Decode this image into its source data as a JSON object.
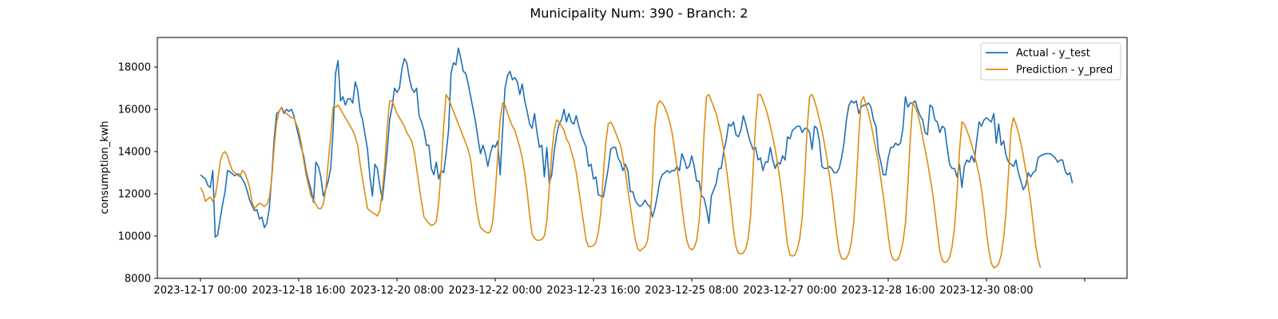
{
  "chart_data": {
    "type": "line",
    "title": "Municipality Num: 390 - Branch: 2",
    "xlabel": "",
    "ylabel": "consumption_kwh",
    "ylim": [
      8000,
      19400
    ],
    "yticks": [
      8000,
      10000,
      12000,
      14000,
      16000,
      18000
    ],
    "grid": false,
    "legend_position": "top-right",
    "x_start": "2023-12-17 00:00",
    "x_step_hours": 1,
    "xticks": [
      {
        "label": "2023-12-17 00:00",
        "index": 0
      },
      {
        "label": "2023-12-18 16:00",
        "index": 40
      },
      {
        "label": "2023-12-20 08:00",
        "index": 80
      },
      {
        "label": "2023-12-22 00:00",
        "index": 120
      },
      {
        "label": "2023-12-23 16:00",
        "index": 160
      },
      {
        "label": "2023-12-25 08:00",
        "index": 200
      },
      {
        "label": "2023-12-27 00:00",
        "index": 240
      },
      {
        "label": "2023-12-28 16:00",
        "index": 280
      },
      {
        "label": "2023-12-30 08:00",
        "index": 320
      },
      {
        "label": "",
        "index": 360
      }
    ],
    "series": [
      {
        "name": "Actual - y_test",
        "color": "#1f6fb4",
        "values": [
          12900,
          12800,
          12700,
          12400,
          12300,
          13100,
          9950,
          10050,
          10800,
          11500,
          12100,
          13100,
          13050,
          12950,
          12850,
          12950,
          12900,
          12700,
          12500,
          12150,
          11700,
          11450,
          11200,
          11250,
          10800,
          10900,
          10400,
          10600,
          11300,
          12800,
          14600,
          15800,
          15900,
          16100,
          15800,
          16000,
          15900,
          16000,
          15700,
          15200,
          14700,
          14200,
          13800,
          13100,
          12600,
          12200,
          11600,
          13500,
          13300,
          12800,
          11900,
          12200,
          12600,
          13200,
          15000,
          17700,
          18300,
          16400,
          16600,
          16200,
          16500,
          16500,
          16300,
          17300,
          16900,
          15900,
          15500,
          14800,
          14100,
          12800,
          11900,
          13400,
          13200,
          12400,
          11700,
          12800,
          14000,
          15500,
          16100,
          17000,
          16800,
          17000,
          17900,
          18400,
          18200,
          17500,
          17000,
          16800,
          17000,
          15700,
          15400,
          15000,
          14300,
          14300,
          13200,
          12900,
          13500,
          12700,
          13100,
          13000,
          13900,
          15000,
          17700,
          18200,
          18100,
          18900,
          18400,
          17800,
          17700,
          17200,
          16600,
          16000,
          15400,
          14600,
          13900,
          14300,
          13900,
          13300,
          13900,
          14300,
          14200,
          14500,
          12900,
          15000,
          17000,
          17600,
          17800,
          17400,
          17500,
          17300,
          16700,
          17200,
          16400,
          15900,
          15300,
          15100,
          15800,
          14900,
          14200,
          14300,
          12800,
          14200,
          12500,
          12900,
          14000,
          14800,
          15300,
          15500,
          16000,
          15400,
          15800,
          15400,
          15300,
          15700,
          15200,
          14800,
          14500,
          14200,
          13300,
          13400,
          12700,
          12800,
          11950,
          11900,
          11850,
          12500,
          13200,
          14100,
          14200,
          14200,
          13700,
          13500,
          13100,
          13400,
          13100,
          12100,
          12100,
          11700,
          11500,
          11400,
          11500,
          11700,
          11500,
          11400,
          10900,
          11300,
          11900,
          12600,
          12900,
          13000,
          13100,
          13000,
          13100,
          13100,
          13300,
          13100,
          13900,
          13600,
          13200,
          13300,
          13800,
          13300,
          12600,
          12600,
          11900,
          11800,
          11300,
          10600,
          11900,
          12200,
          12500,
          13200,
          13200,
          14000,
          14500,
          15300,
          15200,
          15400,
          14800,
          14700,
          15000,
          15700,
          15300,
          14800,
          14400,
          14100,
          14200,
          13600,
          13700,
          13100,
          13500,
          13500,
          14200,
          13600,
          13200,
          13500,
          13400,
          13800,
          13600,
          14700,
          14600,
          15000,
          15100,
          15200,
          15200,
          14900,
          15100,
          15100,
          14900,
          14100,
          15200,
          15100,
          14500,
          13300,
          13200,
          13200,
          13300,
          13200,
          13000,
          13000,
          13200,
          13700,
          14400,
          15500,
          16200,
          16400,
          16300,
          16400,
          15800,
          16100,
          16200,
          16200,
          16300,
          16100,
          15500,
          15200,
          14000,
          13500,
          12900,
          12900,
          13700,
          14200,
          14200,
          14400,
          14300,
          14400,
          15100,
          16600,
          16100,
          16300,
          16300,
          16400,
          16000,
          15700,
          15500,
          14900,
          14800,
          16200,
          16100,
          15500,
          15400,
          14900,
          15200,
          15100,
          14200,
          13400,
          13200,
          13200,
          12800,
          13400,
          12300,
          13300,
          13600,
          13500,
          13800,
          13500,
          14500,
          15400,
          15200,
          15500,
          15600,
          15500,
          15400,
          15800,
          14400,
          15300,
          14300,
          14500,
          13800,
          13500,
          13400,
          13300,
          13600,
          13000,
          12600,
          12200,
          12400,
          13000,
          12800,
          13000,
          13100,
          13700,
          13800,
          13850,
          13900,
          13900,
          13900,
          13800,
          13700,
          13500,
          13600,
          13600,
          13100,
          12900,
          13000,
          12500
        ]
      },
      {
        "name": "Prediction - y_pred",
        "color": "#df8b0f",
        "values": [
          12300,
          12100,
          11650,
          11750,
          11850,
          11650,
          11900,
          12600,
          13500,
          13900,
          14000,
          13800,
          13400,
          13100,
          13000,
          12900,
          12800,
          13100,
          13000,
          12700,
          12300,
          11600,
          11300,
          11450,
          11550,
          11500,
          11400,
          11500,
          11800,
          12700,
          14200,
          15400,
          15900,
          16100,
          15900,
          15800,
          15700,
          15600,
          15600,
          15300,
          15000,
          14400,
          13600,
          12900,
          12400,
          11900,
          11700,
          11500,
          11300,
          11300,
          11500,
          12200,
          13500,
          14700,
          16100,
          16100,
          16200,
          16000,
          15800,
          15600,
          15400,
          15200,
          15000,
          14700,
          14300,
          13400,
          12700,
          12000,
          11300,
          11200,
          11100,
          11050,
          10950,
          11200,
          12100,
          13300,
          15100,
          16400,
          16400,
          16100,
          15800,
          15600,
          15400,
          15200,
          14900,
          14700,
          14500,
          14000,
          13200,
          12400,
          11600,
          10900,
          10750,
          10600,
          10500,
          10550,
          10700,
          11600,
          13200,
          15200,
          16700,
          16500,
          16200,
          15900,
          15600,
          15300,
          15000,
          14700,
          14400,
          14100,
          13600,
          12600,
          11700,
          10900,
          10400,
          10300,
          10200,
          10150,
          10200,
          10700,
          12000,
          13800,
          15500,
          16300,
          16200,
          15800,
          15500,
          15200,
          15000,
          14600,
          14200,
          13700,
          13000,
          12100,
          11000,
          10100,
          9900,
          9800,
          9800,
          9850,
          10000,
          10700,
          12300,
          13900,
          15000,
          15500,
          15400,
          15200,
          15000,
          14600,
          14400,
          14000,
          13600,
          13000,
          12200,
          11400,
          10600,
          9800,
          9500,
          9500,
          9550,
          9700,
          10200,
          11100,
          12900,
          14400,
          15300,
          15400,
          15200,
          14900,
          14600,
          14300,
          13700,
          13000,
          12200,
          11400,
          10600,
          9850,
          9400,
          9300,
          9400,
          9500,
          9800,
          10700,
          12500,
          15200,
          16200,
          16400,
          16300,
          16100,
          15800,
          15400,
          14900,
          14100,
          13300,
          12400,
          11400,
          10500,
          9800,
          9450,
          9350,
          9450,
          9800,
          10700,
          12300,
          14800,
          16600,
          16700,
          16400,
          16100,
          15800,
          15300,
          14800,
          14100,
          13300,
          12400,
          11400,
          10300,
          9500,
          9200,
          9150,
          9200,
          9400,
          9900,
          11000,
          13200,
          15300,
          16700,
          16700,
          16400,
          16100,
          15700,
          15200,
          14700,
          14100,
          13400,
          12600,
          11700,
          10600,
          9600,
          9100,
          9050,
          9100,
          9400,
          9900,
          10900,
          12800,
          15100,
          16600,
          16700,
          16400,
          16000,
          15500,
          15000,
          14400,
          13700,
          12900,
          12100,
          11100,
          10100,
          9300,
          8950,
          8900,
          8950,
          9200,
          9700,
          10700,
          12500,
          14700,
          16400,
          16600,
          16200,
          15800,
          15300,
          14700,
          14100,
          13500,
          12700,
          11900,
          11000,
          10000,
          9200,
          8900,
          8850,
          8900,
          9200,
          9700,
          10600,
          12400,
          14600,
          16300,
          16100,
          15800,
          15300,
          14700,
          14100,
          13500,
          12800,
          12100,
          11200,
          10200,
          9300,
          8850,
          8750,
          8800,
          9000,
          9500,
          10400,
          12000,
          14000,
          15400,
          15300,
          15000,
          14700,
          14300,
          13900,
          13400,
          12900,
          12200,
          11300,
          10200,
          9300,
          8700,
          8500,
          8550,
          8700,
          9100,
          9900,
          11200,
          13000,
          15000,
          15600,
          15300,
          14900,
          14400,
          13800,
          13100,
          12400,
          11600,
          10600,
          9600,
          8900,
          8500
        ]
      }
    ]
  }
}
